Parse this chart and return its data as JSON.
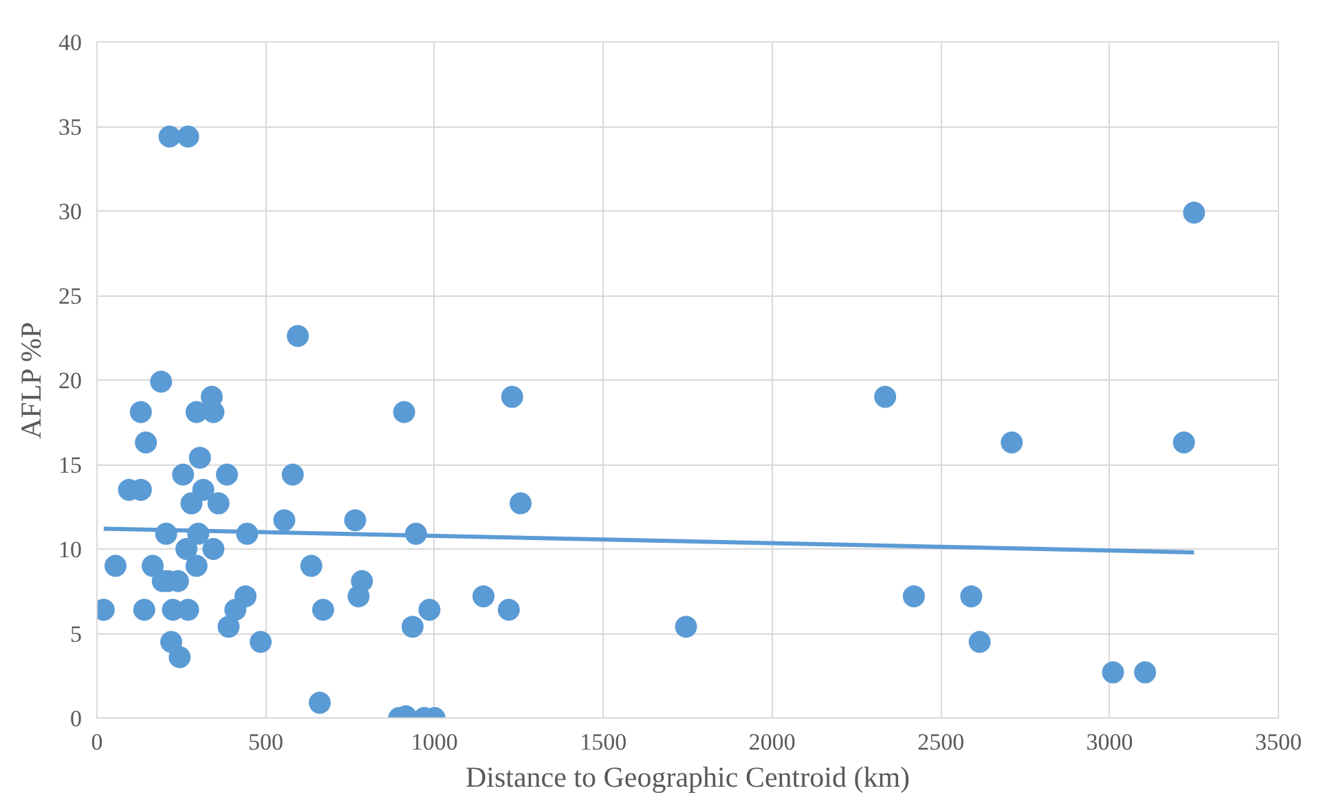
{
  "chart_data": {
    "type": "scatter",
    "xlabel": "Distance to Geographic Centroid (km)",
    "ylabel": "AFLP %P",
    "xlim": [
      0,
      3500
    ],
    "xticks": [
      0,
      500,
      1000,
      1500,
      2000,
      2500,
      3000,
      3500
    ],
    "ylim": [
      0,
      40
    ],
    "yticks": [
      0,
      5,
      10,
      15,
      20,
      25,
      30,
      35,
      40
    ],
    "grid": true,
    "marker": "circle",
    "series": [
      {
        "color": "#5b9bd5",
        "x": [
          20,
          55,
          95,
          130,
          130,
          140,
          145,
          165,
          190,
          195,
          205,
          210,
          215,
          220,
          225,
          240,
          245,
          255,
          265,
          270,
          270,
          280,
          295,
          295,
          300,
          305,
          315,
          340,
          345,
          345,
          360,
          385,
          390,
          410,
          440,
          445,
          485,
          555,
          580,
          595,
          635,
          660,
          670,
          765,
          775,
          785,
          895,
          910,
          915,
          935,
          945,
          970,
          985,
          1000,
          1145,
          1220,
          1230,
          1255,
          1745,
          2335,
          2420,
          2590,
          2615,
          2710,
          3010,
          3105,
          3220,
          3250
        ],
        "values": [
          6.4,
          9.0,
          13.5,
          13.5,
          18.1,
          6.4,
          16.3,
          9.0,
          19.9,
          8.1,
          10.9,
          8.1,
          34.4,
          4.5,
          6.4,
          8.1,
          3.6,
          14.4,
          10.0,
          6.4,
          34.4,
          12.7,
          18.1,
          9.0,
          10.9,
          15.4,
          13.5,
          19.0,
          18.1,
          10.0,
          12.7,
          14.4,
          5.4,
          6.4,
          7.2,
          10.9,
          4.5,
          11.7,
          14.4,
          22.6,
          9.0,
          0.9,
          6.4,
          11.7,
          7.2,
          8.1,
          0,
          18.1,
          0.1,
          5.4,
          10.9,
          0,
          6.4,
          0,
          7.2,
          6.4,
          19.0,
          12.7,
          5.4,
          19.0,
          7.2,
          7.2,
          4.5,
          16.3,
          2.7,
          2.7,
          16.3,
          29.9
        ]
      },
      {
        "type": "line",
        "marker": "none",
        "color": "#5b9bd5",
        "x": [
          20,
          3250
        ],
        "values": [
          11.2,
          9.8
        ]
      }
    ]
  }
}
